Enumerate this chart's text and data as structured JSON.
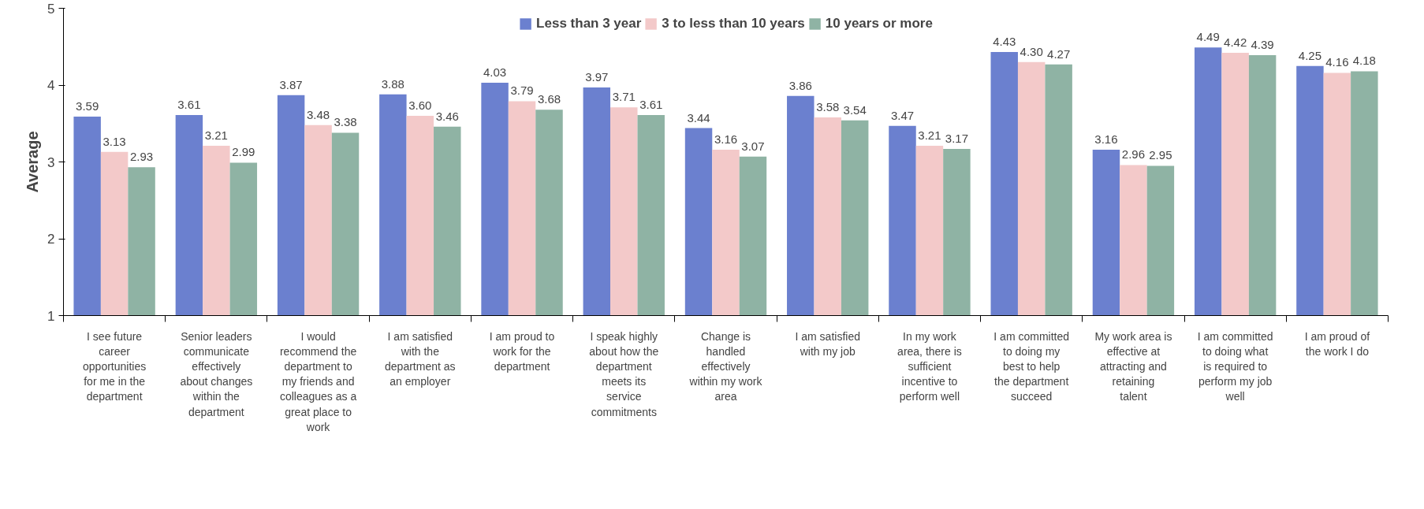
{
  "chart_data": {
    "type": "bar",
    "ylabel": "Average",
    "ylim": [
      1,
      5
    ],
    "yticks": [
      1,
      2,
      3,
      4,
      5
    ],
    "grid": false,
    "legend": "top",
    "categories": [
      "I see future career opportunities for me in the department",
      "Senior leaders communicate effectively about changes within the department",
      "I would recommend the department to my friends and colleagues as a great place to work",
      "I am satisfied with the department as an employer",
      "I am proud to work for the department",
      "I speak highly about how the department meets its service commitments",
      "Change is handled effectively within my work area",
      "I am satisfied with my job",
      "In my work area, there is sufficient incentive to perform well",
      "I am committed to doing my best to help the department succeed",
      "My work area is effective at attracting and retaining talent",
      "I am committed to doing what is required to perform my job well",
      "I am proud of the work I do"
    ],
    "series": [
      {
        "name": "Less than 3 year",
        "color": "#6b80cf",
        "values": [
          3.59,
          3.61,
          3.87,
          3.88,
          4.03,
          3.97,
          3.44,
          3.86,
          3.47,
          4.43,
          3.16,
          4.49,
          4.25
        ],
        "value_labels": [
          "3.59",
          "3.61",
          "3.87",
          "3.88",
          "4.03",
          "3.97",
          "3.44",
          "3.86",
          "3.47",
          "4.43",
          "3.16",
          "4.49",
          "4.25"
        ]
      },
      {
        "name": "3 to less than 10 years",
        "color": "#f3c9c9",
        "values": [
          3.13,
          3.21,
          3.48,
          3.6,
          3.79,
          3.71,
          3.16,
          3.58,
          3.21,
          4.3,
          2.96,
          4.42,
          4.16
        ],
        "value_labels": [
          "3.13",
          "3.21",
          "3.48",
          "3.60",
          "3.79",
          "3.71",
          "3.16",
          "3.58",
          "3.21",
          "4.30",
          "2.96",
          "4.42",
          "4.16"
        ]
      },
      {
        "name": "10 years or more",
        "color": "#8fb3a4",
        "values": [
          2.93,
          2.99,
          3.38,
          3.46,
          3.68,
          3.61,
          3.07,
          3.54,
          3.17,
          4.27,
          2.95,
          4.39,
          4.18
        ],
        "value_labels": [
          "2.93",
          "2.99",
          "3.38",
          "3.46",
          "3.68",
          "3.61",
          "3.07",
          "3.54",
          "3.17",
          "4.27",
          "2.95",
          "4.39",
          "4.18"
        ]
      }
    ]
  }
}
